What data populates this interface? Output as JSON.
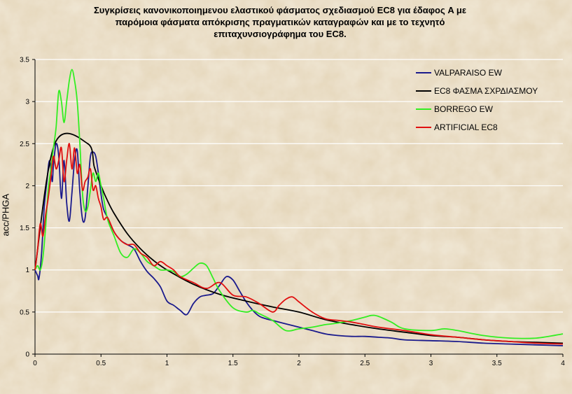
{
  "chart_data": {
    "type": "line",
    "title": "Συγκρίσεις κανονικοποιημενου ελαστικού φάσματος σχεδιασμού EC8 για έδαφος A με\nπαρόμοια φάσματα απόκρισης πραγματικών καταγραφών και με το τεχνητό\nεπιταχυνσιογράφημα του EC8.",
    "xlabel": "",
    "ylabel": "acc/PHGA",
    "xlim": [
      0,
      4
    ],
    "ylim": [
      0,
      3.5
    ],
    "x_ticks": [
      "0",
      "0.5",
      "1",
      "1.5",
      "2",
      "2.5",
      "3",
      "3.5",
      "4"
    ],
    "y_ticks": [
      "0",
      "0.5",
      "1",
      "1.5",
      "2",
      "2.5",
      "3",
      "3.5"
    ],
    "grid": "horizontal",
    "legend_position": "top-right",
    "series": [
      {
        "name": "VALPARAISO EW",
        "color": "#1a1a8c",
        "x": [
          0,
          0.02,
          0.03,
          0.05,
          0.07,
          0.09,
          0.11,
          0.13,
          0.14,
          0.16,
          0.18,
          0.2,
          0.22,
          0.24,
          0.26,
          0.28,
          0.3,
          0.32,
          0.34,
          0.36,
          0.38,
          0.4,
          0.42,
          0.44,
          0.46,
          0.48,
          0.5,
          0.52,
          0.55,
          0.6,
          0.65,
          0.7,
          0.75,
          0.8,
          0.85,
          0.9,
          0.95,
          1.0,
          1.05,
          1.1,
          1.15,
          1.2,
          1.25,
          1.3,
          1.35,
          1.4,
          1.45,
          1.5,
          1.55,
          1.6,
          1.65,
          1.7,
          1.75,
          1.8,
          1.9,
          2.0,
          2.1,
          2.2,
          2.3,
          2.4,
          2.5,
          2.6,
          2.7,
          2.8,
          3.0,
          3.2,
          3.4,
          3.6,
          3.8,
          4.0
        ],
        "y": [
          1.0,
          0.93,
          0.9,
          1.2,
          1.75,
          2.05,
          2.3,
          2.05,
          2.25,
          2.5,
          2.35,
          1.85,
          2.3,
          1.8,
          1.58,
          1.92,
          2.3,
          2.42,
          1.92,
          1.6,
          1.62,
          1.98,
          2.35,
          2.4,
          2.35,
          2.15,
          1.9,
          1.72,
          1.62,
          1.45,
          1.35,
          1.3,
          1.25,
          1.1,
          0.98,
          0.9,
          0.8,
          0.63,
          0.58,
          0.52,
          0.47,
          0.6,
          0.68,
          0.7,
          0.72,
          0.82,
          0.92,
          0.88,
          0.75,
          0.62,
          0.52,
          0.45,
          0.42,
          0.4,
          0.36,
          0.32,
          0.28,
          0.24,
          0.22,
          0.21,
          0.21,
          0.2,
          0.19,
          0.17,
          0.16,
          0.15,
          0.13,
          0.12,
          0.11,
          0.1
        ]
      },
      {
        "name": "EC8 ΦΑΣΜΑ ΣΧΡΔΙΑΣΜΟΥ",
        "color": "#000000",
        "x": [
          0,
          0.15,
          0.4,
          0.45,
          0.5,
          0.55,
          0.6,
          0.7,
          0.8,
          0.9,
          1.0,
          1.2,
          1.4,
          1.6,
          1.8,
          2.0,
          2.2,
          2.4,
          2.6,
          2.8,
          3.0,
          3.2,
          3.4,
          3.6,
          3.8,
          4.0
        ],
        "y": [
          1.0,
          2.5,
          2.5,
          2.22,
          2.0,
          1.82,
          1.67,
          1.43,
          1.25,
          1.11,
          1.0,
          0.83,
          0.71,
          0.63,
          0.56,
          0.5,
          0.41,
          0.35,
          0.3,
          0.26,
          0.22,
          0.2,
          0.17,
          0.15,
          0.14,
          0.13
        ]
      },
      {
        "name": "BORREGO EW",
        "color": "#33ee22",
        "x": [
          0,
          0.02,
          0.04,
          0.06,
          0.08,
          0.1,
          0.12,
          0.14,
          0.16,
          0.18,
          0.2,
          0.22,
          0.24,
          0.26,
          0.28,
          0.3,
          0.32,
          0.34,
          0.36,
          0.38,
          0.4,
          0.42,
          0.44,
          0.46,
          0.48,
          0.5,
          0.52,
          0.55,
          0.6,
          0.65,
          0.7,
          0.75,
          0.8,
          0.85,
          0.9,
          0.95,
          1.0,
          1.05,
          1.1,
          1.15,
          1.2,
          1.25,
          1.3,
          1.35,
          1.4,
          1.5,
          1.6,
          1.65,
          1.7,
          1.8,
          1.9,
          2.0,
          2.1,
          2.2,
          2.3,
          2.4,
          2.5,
          2.55,
          2.6,
          2.7,
          2.8,
          3.0,
          3.1,
          3.2,
          3.4,
          3.6,
          3.8,
          4.0
        ],
        "y": [
          1.0,
          1.05,
          1.0,
          1.15,
          1.5,
          1.95,
          2.2,
          2.45,
          2.7,
          3.12,
          3.0,
          2.75,
          3.0,
          3.25,
          3.38,
          3.25,
          3.0,
          2.5,
          1.9,
          1.7,
          1.75,
          1.95,
          2.15,
          2.05,
          2.15,
          2.0,
          1.85,
          1.6,
          1.4,
          1.2,
          1.15,
          1.25,
          1.2,
          1.1,
          1.05,
          1.0,
          1.0,
          0.98,
          0.92,
          0.95,
          1.02,
          1.08,
          1.05,
          0.9,
          0.75,
          0.55,
          0.5,
          0.52,
          0.48,
          0.4,
          0.28,
          0.3,
          0.32,
          0.35,
          0.37,
          0.4,
          0.44,
          0.46,
          0.45,
          0.38,
          0.3,
          0.28,
          0.3,
          0.28,
          0.22,
          0.19,
          0.19,
          0.24
        ]
      },
      {
        "name": "ARTIFICIAL EC8",
        "color": "#e01010",
        "x": [
          0,
          0.02,
          0.04,
          0.06,
          0.08,
          0.1,
          0.12,
          0.14,
          0.16,
          0.18,
          0.2,
          0.22,
          0.24,
          0.26,
          0.28,
          0.3,
          0.32,
          0.34,
          0.36,
          0.38,
          0.4,
          0.42,
          0.44,
          0.46,
          0.48,
          0.5,
          0.52,
          0.55,
          0.6,
          0.65,
          0.7,
          0.75,
          0.8,
          0.85,
          0.9,
          0.95,
          1.0,
          1.05,
          1.1,
          1.2,
          1.3,
          1.4,
          1.5,
          1.6,
          1.7,
          1.8,
          1.85,
          1.9,
          1.95,
          2.0,
          2.1,
          2.2,
          2.3,
          2.4,
          2.5,
          2.6,
          2.8,
          3.0,
          3.2,
          3.4,
          3.6,
          3.8,
          4.0
        ],
        "y": [
          1.0,
          1.25,
          1.55,
          1.4,
          1.65,
          1.85,
          2.1,
          2.35,
          2.2,
          2.3,
          2.45,
          2.05,
          2.3,
          2.5,
          2.2,
          2.45,
          2.15,
          2.25,
          1.95,
          2.05,
          2.1,
          2.2,
          1.95,
          2.0,
          1.85,
          1.75,
          1.6,
          1.62,
          1.45,
          1.35,
          1.3,
          1.3,
          1.2,
          1.15,
          1.05,
          1.1,
          1.05,
          1.0,
          0.92,
          0.85,
          0.78,
          0.85,
          0.7,
          0.68,
          0.6,
          0.5,
          0.58,
          0.65,
          0.68,
          0.62,
          0.5,
          0.42,
          0.4,
          0.38,
          0.35,
          0.32,
          0.28,
          0.23,
          0.2,
          0.17,
          0.15,
          0.13,
          0.12
        ]
      }
    ]
  }
}
